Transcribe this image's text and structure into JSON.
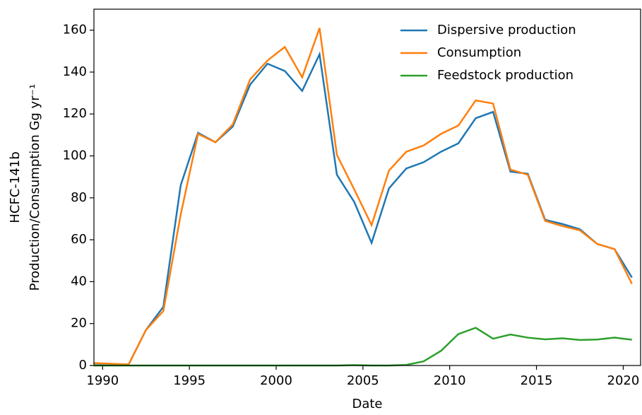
{
  "chart_data": {
    "type": "line",
    "xlabel": "Date",
    "ylabel": [
      "HCFC-141b",
      "Production/Consumption Gg yr⁻¹"
    ],
    "x": [
      1989.5,
      1991.5,
      1992.5,
      1993.5,
      1994.5,
      1995.5,
      1996.5,
      1997.5,
      1998.5,
      1999.5,
      2000.5,
      2001.5,
      2002.5,
      2003.5,
      2004.5,
      2005.5,
      2006.5,
      2007.5,
      2008.5,
      2009.5,
      2010.5,
      2011.5,
      2012.5,
      2013.5,
      2014.5,
      2015.5,
      2016.5,
      2017.5,
      2018.5,
      2019.5,
      2020.5
    ],
    "series": [
      {
        "name": "Dispersive production",
        "color": "#1f77b4",
        "values": [
          1,
          0.5,
          17,
          28,
          86,
          111,
          106.5,
          114,
          134,
          144,
          140.5,
          131,
          148.5,
          91,
          78,
          58.5,
          84.5,
          94,
          97,
          102,
          106,
          118,
          121,
          92.5,
          91.5,
          69.5,
          67.5,
          65,
          58,
          55.5,
          42
        ]
      },
      {
        "name": "Consumption",
        "color": "#ff7f0e",
        "values": [
          1.2,
          0.5,
          17,
          26,
          72,
          110.5,
          106.5,
          115,
          136.5,
          145.5,
          152,
          137.5,
          161,
          100.5,
          84,
          67,
          93,
          102,
          105,
          110.5,
          114.5,
          126.5,
          125,
          93.5,
          91,
          69,
          66.5,
          64.5,
          58,
          55.5,
          39
        ]
      },
      {
        "name": "Feedstock production",
        "color": "#2ca02c",
        "values": [
          0,
          0,
          0,
          0,
          0,
          0,
          0,
          0,
          0,
          0,
          0,
          0,
          0,
          0,
          0.2,
          0,
          0,
          0.3,
          2,
          7,
          15,
          18,
          12.8,
          14.8,
          13.3,
          12.5,
          13,
          12.2,
          12.4,
          13.3,
          12.3
        ]
      }
    ],
    "xlim": [
      1989.5,
      2021
    ],
    "xticks": [
      1990,
      1995,
      2000,
      2005,
      2010,
      2015,
      2020
    ],
    "ylim": [
      0,
      170
    ],
    "yticks": [
      0,
      20,
      40,
      60,
      80,
      100,
      120,
      140,
      160
    ],
    "legend": "upper right",
    "grid": false
  }
}
